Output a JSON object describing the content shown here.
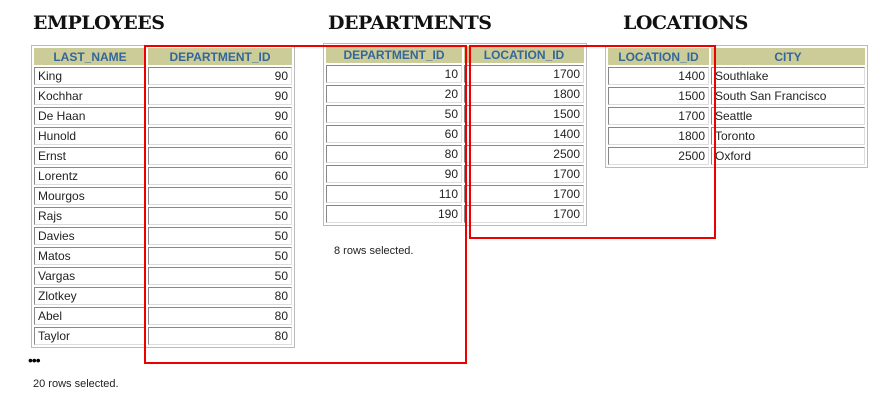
{
  "employees": {
    "title": "EMPLOYEES",
    "headers": [
      "LAST_NAME",
      "DEPARTMENT_ID"
    ],
    "rows": [
      [
        "King",
        "90"
      ],
      [
        "Kochhar",
        "90"
      ],
      [
        "De Haan",
        "90"
      ],
      [
        "Hunold",
        "60"
      ],
      [
        "Ernst",
        "60"
      ],
      [
        "Lorentz",
        "60"
      ],
      [
        "Mourgos",
        "50"
      ],
      [
        "Rajs",
        "50"
      ],
      [
        "Davies",
        "50"
      ],
      [
        "Matos",
        "50"
      ],
      [
        "Vargas",
        "50"
      ],
      [
        "Zlotkey",
        "80"
      ],
      [
        "Abel",
        "80"
      ],
      [
        "Taylor",
        "80"
      ]
    ],
    "ellipsis": "•••",
    "footer": "20 rows selected."
  },
  "departments": {
    "title": "DEPARTMENTS",
    "headers": [
      "DEPARTMENT_ID",
      "LOCATION_ID"
    ],
    "rows": [
      [
        "10",
        "1700"
      ],
      [
        "20",
        "1800"
      ],
      [
        "50",
        "1500"
      ],
      [
        "60",
        "1400"
      ],
      [
        "80",
        "2500"
      ],
      [
        "90",
        "1700"
      ],
      [
        "110",
        "1700"
      ],
      [
        "190",
        "1700"
      ]
    ],
    "footer": "8 rows selected."
  },
  "locations": {
    "title": "LOCATIONS",
    "headers": [
      "LOCATION_ID",
      "CITY"
    ],
    "rows": [
      [
        "1400",
        "Southlake"
      ],
      [
        "1500",
        "South San Francisco"
      ],
      [
        "1700",
        "Seattle"
      ],
      [
        "1800",
        "Toronto"
      ],
      [
        "2500",
        "Oxford"
      ]
    ]
  },
  "colors": {
    "header_bg": "#cccc99",
    "header_text": "#336699",
    "highlight": "#ee0000"
  }
}
